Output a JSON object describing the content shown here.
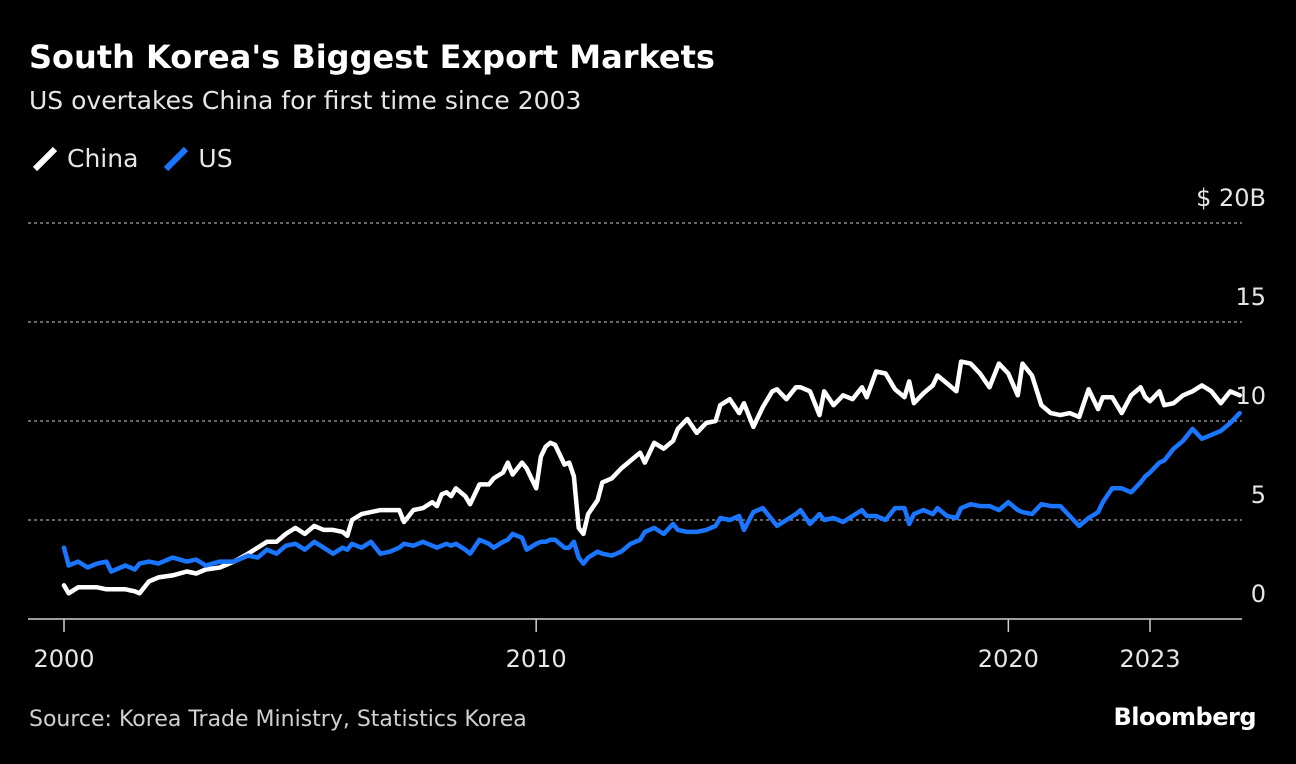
{
  "title": "South Korea's Biggest Export Markets",
  "subtitle": "US overtakes China for first time since 2003",
  "legend": [
    {
      "name": "China",
      "color": "#ffffff"
    },
    {
      "name": "US",
      "color": "#1a75ff"
    }
  ],
  "source": "Source: Korea Trade Ministry, Statistics Korea",
  "brand": "Bloomberg",
  "chart_data": {
    "type": "line",
    "title": "South Korea's Biggest Export Markets",
    "subtitle": "US overtakes China for first time since 2003",
    "xlabel": "",
    "ylabel": "",
    "xlim": [
      2000,
      2025
    ],
    "ylim": [
      0,
      20
    ],
    "y_unit_label": "$ 20B",
    "x_ticks": [
      {
        "value": 2000,
        "label": "2000"
      },
      {
        "value": 2010,
        "label": "2010"
      },
      {
        "value": 2020,
        "label": "2020"
      },
      {
        "value": 2023,
        "label": "2023"
      }
    ],
    "y_ticks": [
      {
        "value": 0,
        "label": "0"
      },
      {
        "value": 5,
        "label": "5"
      },
      {
        "value": 10,
        "label": "10"
      },
      {
        "value": 15,
        "label": "15"
      },
      {
        "value": 20,
        "label": "$ 20B"
      }
    ],
    "grid": true,
    "legend_position": "top-left",
    "series": [
      {
        "name": "China",
        "color": "#ffffff",
        "points": [
          [
            2000.0,
            1.7
          ],
          [
            2000.1,
            1.3
          ],
          [
            2000.3,
            1.6
          ],
          [
            2000.5,
            1.6
          ],
          [
            2000.7,
            1.6
          ],
          [
            2000.9,
            1.5
          ],
          [
            2001.0,
            1.5
          ],
          [
            2001.3,
            1.5
          ],
          [
            2001.5,
            1.4
          ],
          [
            2001.6,
            1.3
          ],
          [
            2001.8,
            1.9
          ],
          [
            2002.0,
            2.1
          ],
          [
            2002.3,
            2.2
          ],
          [
            2002.6,
            2.4
          ],
          [
            2002.8,
            2.3
          ],
          [
            2003.0,
            2.5
          ],
          [
            2003.3,
            2.6
          ],
          [
            2003.6,
            2.9
          ],
          [
            2003.9,
            3.3
          ],
          [
            2004.1,
            3.6
          ],
          [
            2004.3,
            3.9
          ],
          [
            2004.5,
            3.9
          ],
          [
            2004.7,
            4.3
          ],
          [
            2004.9,
            4.6
          ],
          [
            2005.1,
            4.3
          ],
          [
            2005.3,
            4.7
          ],
          [
            2005.5,
            4.5
          ],
          [
            2005.7,
            4.5
          ],
          [
            2005.9,
            4.4
          ],
          [
            2006.0,
            4.2
          ],
          [
            2006.1,
            5.0
          ],
          [
            2006.3,
            5.3
          ],
          [
            2006.5,
            5.4
          ],
          [
            2006.7,
            5.5
          ],
          [
            2006.9,
            5.5
          ],
          [
            2007.1,
            5.5
          ],
          [
            2007.2,
            4.9
          ],
          [
            2007.4,
            5.5
          ],
          [
            2007.6,
            5.6
          ],
          [
            2007.8,
            5.9
          ],
          [
            2007.9,
            5.7
          ],
          [
            2008.0,
            6.3
          ],
          [
            2008.1,
            6.4
          ],
          [
            2008.2,
            6.2
          ],
          [
            2008.3,
            6.6
          ],
          [
            2008.5,
            6.2
          ],
          [
            2008.6,
            5.8
          ],
          [
            2008.8,
            6.8
          ],
          [
            2009.0,
            6.8
          ],
          [
            2009.1,
            7.1
          ],
          [
            2009.3,
            7.4
          ],
          [
            2009.4,
            7.9
          ],
          [
            2009.5,
            7.3
          ],
          [
            2009.7,
            7.9
          ],
          [
            2009.8,
            7.6
          ],
          [
            2010.0,
            6.6
          ],
          [
            2010.1,
            8.2
          ],
          [
            2010.2,
            8.7
          ],
          [
            2010.3,
            8.9
          ],
          [
            2010.4,
            8.8
          ],
          [
            2010.6,
            7.8
          ],
          [
            2010.7,
            7.9
          ],
          [
            2010.8,
            7.2
          ],
          [
            2010.9,
            4.6
          ],
          [
            2011.0,
            4.3
          ],
          [
            2011.1,
            5.3
          ],
          [
            2011.3,
            6.0
          ],
          [
            2011.4,
            6.9
          ],
          [
            2011.6,
            7.1
          ],
          [
            2011.8,
            7.6
          ],
          [
            2012.0,
            8.0
          ],
          [
            2012.2,
            8.4
          ],
          [
            2012.3,
            7.9
          ],
          [
            2012.5,
            8.9
          ],
          [
            2012.7,
            8.6
          ],
          [
            2012.9,
            9.0
          ],
          [
            2013.0,
            9.6
          ],
          [
            2013.2,
            10.1
          ],
          [
            2013.4,
            9.4
          ],
          [
            2013.6,
            9.9
          ],
          [
            2013.8,
            10.0
          ],
          [
            2013.9,
            10.8
          ],
          [
            2014.1,
            11.1
          ],
          [
            2014.3,
            10.4
          ],
          [
            2014.4,
            10.9
          ],
          [
            2014.6,
            9.7
          ],
          [
            2014.8,
            10.7
          ],
          [
            2015.0,
            11.5
          ],
          [
            2015.1,
            11.6
          ],
          [
            2015.3,
            11.1
          ],
          [
            2015.5,
            11.7
          ],
          [
            2015.6,
            11.7
          ],
          [
            2015.8,
            11.5
          ],
          [
            2016.0,
            10.3
          ],
          [
            2016.1,
            11.5
          ],
          [
            2016.3,
            10.8
          ],
          [
            2016.5,
            11.3
          ],
          [
            2016.7,
            11.1
          ],
          [
            2016.9,
            11.7
          ],
          [
            2017.0,
            11.2
          ],
          [
            2017.2,
            12.5
          ],
          [
            2017.4,
            12.4
          ],
          [
            2017.6,
            11.6
          ],
          [
            2017.8,
            11.2
          ],
          [
            2017.9,
            12.0
          ],
          [
            2018.0,
            10.9
          ],
          [
            2018.2,
            11.4
          ],
          [
            2018.4,
            11.8
          ],
          [
            2018.5,
            12.3
          ],
          [
            2018.7,
            11.9
          ],
          [
            2018.9,
            11.5
          ],
          [
            2019.0,
            13.0
          ],
          [
            2019.2,
            12.9
          ],
          [
            2019.4,
            12.4
          ],
          [
            2019.6,
            11.7
          ],
          [
            2019.8,
            12.9
          ],
          [
            2020.0,
            12.4
          ],
          [
            2020.2,
            11.3
          ],
          [
            2020.3,
            12.9
          ],
          [
            2020.5,
            12.3
          ],
          [
            2020.7,
            10.8
          ],
          [
            2020.9,
            10.4
          ],
          [
            2021.1,
            10.3
          ],
          [
            2021.3,
            10.4
          ],
          [
            2021.5,
            10.2
          ],
          [
            2021.7,
            11.6
          ],
          [
            2021.9,
            10.6
          ],
          [
            2022.0,
            11.2
          ],
          [
            2022.2,
            11.2
          ],
          [
            2022.4,
            10.4
          ],
          [
            2022.6,
            11.3
          ],
          [
            2022.8,
            11.7
          ],
          [
            2022.9,
            11.2
          ],
          [
            2023.0,
            11.0
          ],
          [
            2023.2,
            11.5
          ],
          [
            2023.3,
            10.8
          ],
          [
            2023.5,
            10.9
          ],
          [
            2023.7,
            11.3
          ],
          [
            2023.9,
            11.5
          ],
          [
            2024.1,
            11.8
          ],
          [
            2024.3,
            11.5
          ],
          [
            2024.5,
            10.9
          ],
          [
            2024.7,
            11.5
          ],
          [
            2024.9,
            11.3
          ]
        ]
      },
      {
        "name": "US",
        "color": "#1a75ff",
        "points": [
          [
            2000.0,
            3.6
          ],
          [
            2000.1,
            2.7
          ],
          [
            2000.3,
            2.9
          ],
          [
            2000.5,
            2.6
          ],
          [
            2000.7,
            2.8
          ],
          [
            2000.9,
            2.9
          ],
          [
            2001.0,
            2.4
          ],
          [
            2001.3,
            2.7
          ],
          [
            2001.5,
            2.5
          ],
          [
            2001.6,
            2.8
          ],
          [
            2001.8,
            2.9
          ],
          [
            2002.0,
            2.8
          ],
          [
            2002.3,
            3.1
          ],
          [
            2002.6,
            2.9
          ],
          [
            2002.8,
            3.0
          ],
          [
            2003.0,
            2.7
          ],
          [
            2003.3,
            2.9
          ],
          [
            2003.6,
            2.9
          ],
          [
            2003.9,
            3.2
          ],
          [
            2004.1,
            3.1
          ],
          [
            2004.3,
            3.5
          ],
          [
            2004.5,
            3.3
          ],
          [
            2004.7,
            3.7
          ],
          [
            2004.9,
            3.8
          ],
          [
            2005.1,
            3.5
          ],
          [
            2005.3,
            3.9
          ],
          [
            2005.5,
            3.6
          ],
          [
            2005.7,
            3.3
          ],
          [
            2005.9,
            3.6
          ],
          [
            2006.0,
            3.5
          ],
          [
            2006.1,
            3.8
          ],
          [
            2006.3,
            3.6
          ],
          [
            2006.5,
            3.9
          ],
          [
            2006.7,
            3.3
          ],
          [
            2006.9,
            3.4
          ],
          [
            2007.1,
            3.6
          ],
          [
            2007.2,
            3.8
          ],
          [
            2007.4,
            3.7
          ],
          [
            2007.6,
            3.9
          ],
          [
            2007.8,
            3.7
          ],
          [
            2007.9,
            3.6
          ],
          [
            2008.0,
            3.7
          ],
          [
            2008.1,
            3.8
          ],
          [
            2008.2,
            3.7
          ],
          [
            2008.3,
            3.8
          ],
          [
            2008.5,
            3.5
          ],
          [
            2008.6,
            3.3
          ],
          [
            2008.8,
            4.0
          ],
          [
            2009.0,
            3.8
          ],
          [
            2009.1,
            3.6
          ],
          [
            2009.3,
            3.9
          ],
          [
            2009.4,
            4.0
          ],
          [
            2009.5,
            4.3
          ],
          [
            2009.7,
            4.1
          ],
          [
            2009.8,
            3.5
          ],
          [
            2010.0,
            3.8
          ],
          [
            2010.1,
            3.9
          ],
          [
            2010.2,
            3.9
          ],
          [
            2010.3,
            4.0
          ],
          [
            2010.4,
            4.0
          ],
          [
            2010.6,
            3.6
          ],
          [
            2010.7,
            3.6
          ],
          [
            2010.8,
            3.9
          ],
          [
            2010.9,
            3.1
          ],
          [
            2011.0,
            2.8
          ],
          [
            2011.1,
            3.1
          ],
          [
            2011.3,
            3.4
          ],
          [
            2011.4,
            3.3
          ],
          [
            2011.6,
            3.2
          ],
          [
            2011.8,
            3.4
          ],
          [
            2012.0,
            3.8
          ],
          [
            2012.2,
            4.0
          ],
          [
            2012.3,
            4.4
          ],
          [
            2012.5,
            4.6
          ],
          [
            2012.7,
            4.3
          ],
          [
            2012.9,
            4.8
          ],
          [
            2013.0,
            4.5
          ],
          [
            2013.2,
            4.4
          ],
          [
            2013.4,
            4.4
          ],
          [
            2013.6,
            4.5
          ],
          [
            2013.8,
            4.7
          ],
          [
            2013.9,
            5.1
          ],
          [
            2014.1,
            5.0
          ],
          [
            2014.3,
            5.2
          ],
          [
            2014.4,
            4.5
          ],
          [
            2014.6,
            5.4
          ],
          [
            2014.8,
            5.6
          ],
          [
            2015.0,
            5.0
          ],
          [
            2015.1,
            4.7
          ],
          [
            2015.3,
            5.0
          ],
          [
            2015.5,
            5.3
          ],
          [
            2015.6,
            5.5
          ],
          [
            2015.8,
            4.8
          ],
          [
            2016.0,
            5.3
          ],
          [
            2016.1,
            5.0
          ],
          [
            2016.3,
            5.1
          ],
          [
            2016.5,
            4.9
          ],
          [
            2016.7,
            5.2
          ],
          [
            2016.9,
            5.5
          ],
          [
            2017.0,
            5.2
          ],
          [
            2017.2,
            5.2
          ],
          [
            2017.4,
            5.0
          ],
          [
            2017.6,
            5.6
          ],
          [
            2017.8,
            5.6
          ],
          [
            2017.9,
            4.8
          ],
          [
            2018.0,
            5.3
          ],
          [
            2018.2,
            5.5
          ],
          [
            2018.4,
            5.3
          ],
          [
            2018.5,
            5.6
          ],
          [
            2018.7,
            5.2
          ],
          [
            2018.9,
            5.1
          ],
          [
            2019.0,
            5.6
          ],
          [
            2019.2,
            5.8
          ],
          [
            2019.4,
            5.7
          ],
          [
            2019.6,
            5.7
          ],
          [
            2019.8,
            5.5
          ],
          [
            2020.0,
            5.9
          ],
          [
            2020.2,
            5.5
          ],
          [
            2020.3,
            5.4
          ],
          [
            2020.5,
            5.3
          ],
          [
            2020.7,
            5.8
          ],
          [
            2020.9,
            5.7
          ],
          [
            2021.1,
            5.7
          ],
          [
            2021.3,
            5.2
          ],
          [
            2021.5,
            4.7
          ],
          [
            2021.7,
            5.1
          ],
          [
            2021.9,
            5.4
          ],
          [
            2022.0,
            5.9
          ],
          [
            2022.2,
            6.6
          ],
          [
            2022.4,
            6.6
          ],
          [
            2022.6,
            6.4
          ],
          [
            2022.8,
            6.9
          ],
          [
            2022.9,
            7.2
          ],
          [
            2023.0,
            7.4
          ],
          [
            2023.2,
            7.9
          ],
          [
            2023.3,
            8.0
          ],
          [
            2023.5,
            8.6
          ],
          [
            2023.7,
            9.0
          ],
          [
            2023.9,
            9.6
          ],
          [
            2024.1,
            9.1
          ],
          [
            2024.3,
            9.3
          ],
          [
            2024.5,
            9.5
          ],
          [
            2024.7,
            9.9
          ],
          [
            2024.9,
            10.4
          ]
        ]
      }
    ]
  }
}
